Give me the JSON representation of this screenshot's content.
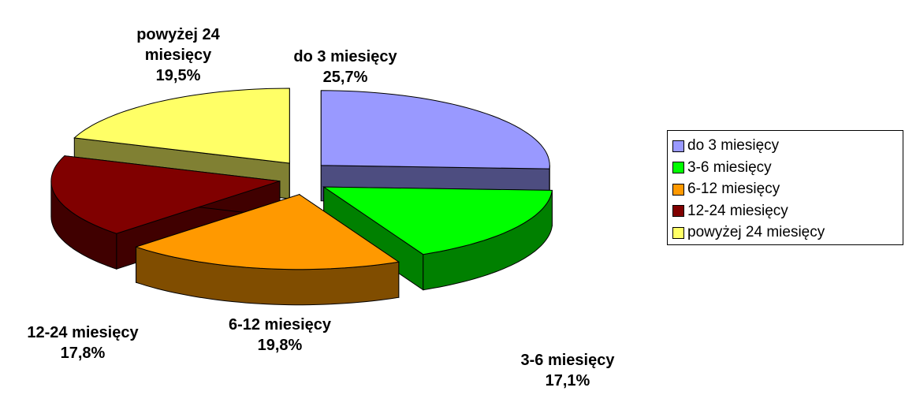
{
  "chart_data": {
    "type": "pie3d",
    "categories": [
      "do 3 miesięcy",
      "3-6 miesięcy",
      "6-12 miesięcy",
      "12-24 miesięcy",
      "powyżej 24 miesięcy"
    ],
    "values": [
      25.7,
      17.1,
      19.8,
      17.8,
      19.5
    ],
    "value_labels": [
      "25,7%",
      "17,1%",
      "19,8%",
      "17,8%",
      "19,5%"
    ],
    "colors": [
      "#9999ff",
      "#00ff00",
      "#ff9900",
      "#800000",
      "#ffff66"
    ],
    "legend": "right"
  }
}
